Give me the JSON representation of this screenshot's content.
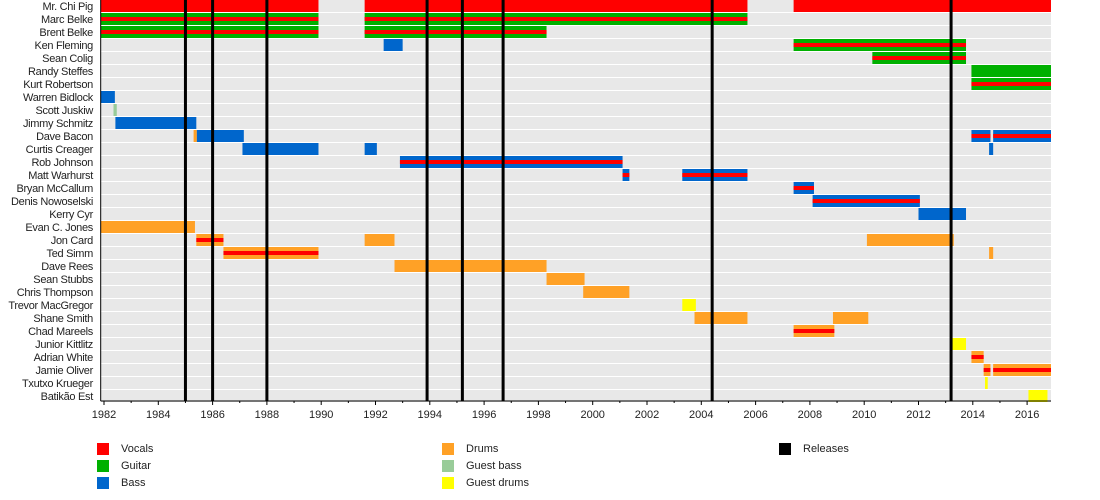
{
  "chart_data": {
    "type": "timeline",
    "title": "",
    "xlabel": "",
    "ylabel": "",
    "xlim": [
      1981.87,
      2016.88
    ],
    "tick_labels": [
      "1982",
      "1984",
      "1986",
      "1988",
      "1990",
      "1992",
      "1994",
      "1996",
      "1998",
      "2000",
      "2002",
      "2004",
      "2006",
      "2008",
      "2010",
      "2012",
      "2014",
      "2016"
    ],
    "colors": {
      "vocals": "#ff0000",
      "guitar": "#00b000",
      "bass": "#0066cc",
      "drums": "#ffa126",
      "guest_bass": "#99cc99",
      "guest_drums": "#ffff00",
      "releases": "#000000",
      "row_bg": "#e8e8e8"
    },
    "legend": [
      {
        "key": "vocals",
        "label": "Vocals"
      },
      {
        "key": "guitar",
        "label": "Guitar"
      },
      {
        "key": "bass",
        "label": "Bass"
      },
      {
        "key": "drums",
        "label": "Drums"
      },
      {
        "key": "guest_bass",
        "label": "Guest bass"
      },
      {
        "key": "guest_drums",
        "label": "Guest drums"
      },
      {
        "key": "releases",
        "label": "Releases"
      }
    ],
    "releases": [
      1985.0,
      1986.0,
      1988.0,
      1993.9,
      1995.2,
      1996.7,
      2004.4,
      2013.2
    ],
    "members": [
      {
        "name": "Mr. Chi Pig",
        "spans": [
          {
            "start": 1981.87,
            "end": 1989.9,
            "role": "vocals"
          },
          {
            "start": 1991.6,
            "end": 2005.7,
            "role": "vocals"
          },
          {
            "start": 2007.4,
            "end": 2016.88,
            "role": "vocals"
          }
        ]
      },
      {
        "name": "Marc Belke",
        "spans": [
          {
            "start": 1981.87,
            "end": 1989.9,
            "role": "guitar",
            "vocals": true
          },
          {
            "start": 1991.6,
            "end": 2005.7,
            "role": "guitar",
            "vocals": true
          }
        ]
      },
      {
        "name": "Brent Belke",
        "spans": [
          {
            "start": 1981.87,
            "end": 1989.9,
            "role": "guitar",
            "vocals": true
          },
          {
            "start": 1991.6,
            "end": 1998.3,
            "role": "guitar",
            "vocals": true
          }
        ]
      },
      {
        "name": "Ken Fleming",
        "spans": [
          {
            "start": 1992.3,
            "end": 1993.0,
            "role": "bass"
          },
          {
            "start": 2007.4,
            "end": 2013.75,
            "role": "guitar",
            "vocals": true
          }
        ]
      },
      {
        "name": "Sean Colig",
        "spans": [
          {
            "start": 2010.3,
            "end": 2013.75,
            "role": "guitar",
            "vocals": true
          }
        ]
      },
      {
        "name": "Randy Steffes",
        "spans": [
          {
            "start": 2013.95,
            "end": 2016.88,
            "role": "guitar"
          }
        ]
      },
      {
        "name": "Kurt Robertson",
        "spans": [
          {
            "start": 2013.95,
            "end": 2016.88,
            "role": "guitar",
            "vocals": true
          }
        ]
      },
      {
        "name": "Warren Bidlock",
        "spans": [
          {
            "start": 1981.87,
            "end": 1982.4,
            "role": "bass"
          }
        ]
      },
      {
        "name": "Scott Juskiw",
        "spans": [
          {
            "start": 1982.35,
            "end": 1982.47,
            "role": "guest_bass"
          }
        ]
      },
      {
        "name": "Jimmy Schmitz",
        "spans": [
          {
            "start": 1982.42,
            "end": 1985.4,
            "role": "bass"
          }
        ]
      },
      {
        "name": "Dave Bacon",
        "spans": [
          {
            "start": 1985.3,
            "end": 1985.42,
            "role": "drums"
          },
          {
            "start": 1985.42,
            "end": 1987.15,
            "role": "bass"
          },
          {
            "start": 2013.95,
            "end": 2014.65,
            "role": "bass",
            "vocals": true
          },
          {
            "start": 2014.75,
            "end": 2016.88,
            "role": "bass",
            "vocals": true
          }
        ]
      },
      {
        "name": "Curtis Creager",
        "spans": [
          {
            "start": 1987.1,
            "end": 1989.9,
            "role": "bass"
          },
          {
            "start": 1991.6,
            "end": 1992.05,
            "role": "bass"
          },
          {
            "start": 2014.6,
            "end": 2014.75,
            "role": "bass"
          }
        ]
      },
      {
        "name": "Rob Johnson",
        "spans": [
          {
            "start": 1992.9,
            "end": 2001.1,
            "role": "bass",
            "vocals": true
          }
        ]
      },
      {
        "name": "Matt Warhurst",
        "spans": [
          {
            "start": 2001.1,
            "end": 2001.35,
            "role": "bass",
            "vocals": true
          },
          {
            "start": 2003.3,
            "end": 2005.7,
            "role": "bass",
            "vocals": true
          }
        ]
      },
      {
        "name": "Bryan McCallum",
        "spans": [
          {
            "start": 2007.4,
            "end": 2008.15,
            "role": "bass",
            "vocals": true
          }
        ]
      },
      {
        "name": "Denis Nowoselski",
        "spans": [
          {
            "start": 2008.1,
            "end": 2012.05,
            "role": "bass",
            "vocals": true
          }
        ]
      },
      {
        "name": "Kerry Cyr",
        "spans": [
          {
            "start": 2012.0,
            "end": 2013.75,
            "role": "bass"
          }
        ]
      },
      {
        "name": "Evan C. Jones",
        "spans": [
          {
            "start": 1981.87,
            "end": 1985.35,
            "role": "drums"
          }
        ]
      },
      {
        "name": "Jon Card",
        "spans": [
          {
            "start": 1985.4,
            "end": 1986.4,
            "role": "drums",
            "vocals": true
          },
          {
            "start": 1991.6,
            "end": 1992.7,
            "role": "drums"
          },
          {
            "start": 2010.1,
            "end": 2013.3,
            "role": "drums"
          }
        ]
      },
      {
        "name": "Ted Simm",
        "spans": [
          {
            "start": 1986.4,
            "end": 1989.9,
            "role": "drums",
            "vocals": true
          },
          {
            "start": 2014.6,
            "end": 2014.75,
            "role": "drums"
          }
        ]
      },
      {
        "name": "Dave Rees",
        "spans": [
          {
            "start": 1992.7,
            "end": 1998.3,
            "role": "drums"
          }
        ]
      },
      {
        "name": "Sean Stubbs",
        "spans": [
          {
            "start": 1998.3,
            "end": 1999.7,
            "role": "drums"
          }
        ]
      },
      {
        "name": "Chris Thompson",
        "spans": [
          {
            "start": 1999.65,
            "end": 2001.35,
            "role": "drums"
          }
        ]
      },
      {
        "name": "Trevor MacGregor",
        "spans": [
          {
            "start": 2003.3,
            "end": 2003.8,
            "role": "guest_drums"
          }
        ]
      },
      {
        "name": "Shane Smith",
        "spans": [
          {
            "start": 2003.75,
            "end": 2005.7,
            "role": "drums"
          },
          {
            "start": 2008.85,
            "end": 2010.15,
            "role": "drums"
          }
        ]
      },
      {
        "name": "Chad Mareels",
        "spans": [
          {
            "start": 2007.4,
            "end": 2008.9,
            "role": "drums",
            "vocals": true
          }
        ]
      },
      {
        "name": "Junior Kittlitz",
        "spans": [
          {
            "start": 2013.25,
            "end": 2013.75,
            "role": "guest_drums"
          }
        ]
      },
      {
        "name": "Adrian White",
        "spans": [
          {
            "start": 2013.95,
            "end": 2014.4,
            "role": "drums",
            "vocals": true
          }
        ]
      },
      {
        "name": "Jamie Oliver",
        "spans": [
          {
            "start": 2014.4,
            "end": 2014.65,
            "role": "drums",
            "vocals": true
          },
          {
            "start": 2014.75,
            "end": 2016.88,
            "role": "drums",
            "vocals": true
          }
        ]
      },
      {
        "name": "Txutxo Krueger",
        "spans": [
          {
            "start": 2014.45,
            "end": 2014.55,
            "role": "guest_drums"
          }
        ]
      },
      {
        "name": "Batikão Est",
        "spans": [
          {
            "start": 2016.05,
            "end": 2016.75,
            "role": "guest_drums"
          }
        ]
      }
    ]
  }
}
